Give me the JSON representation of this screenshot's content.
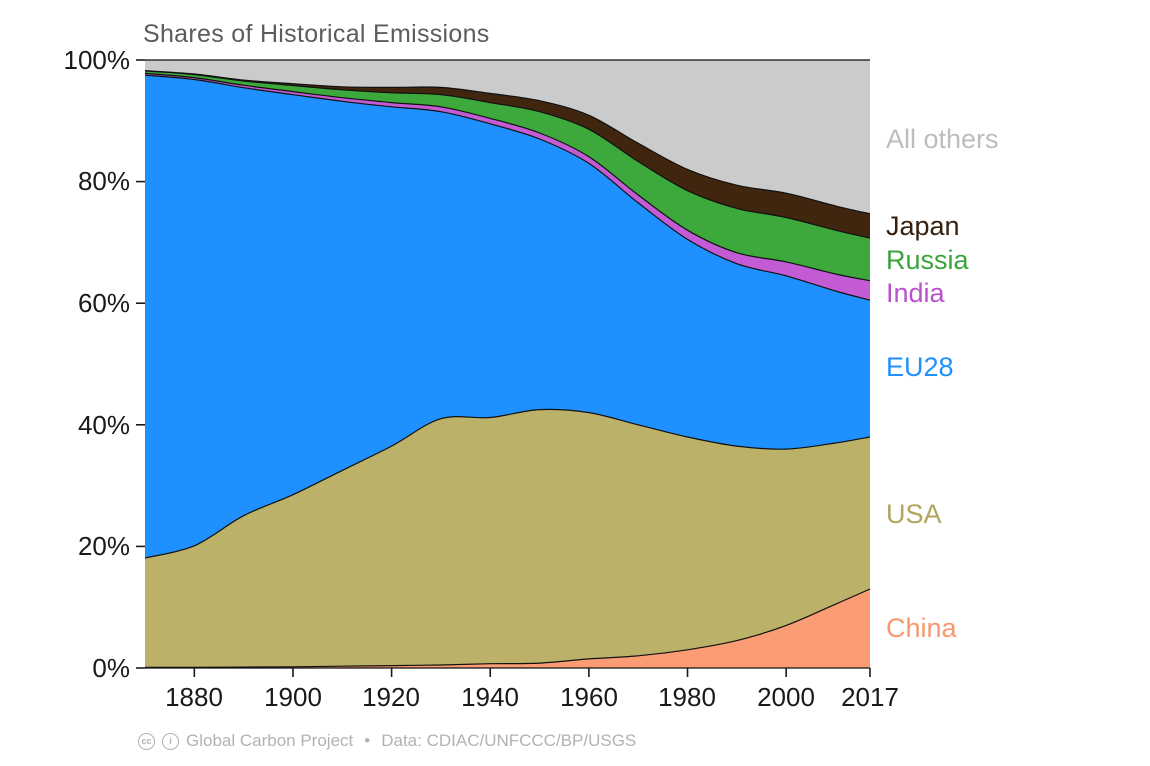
{
  "chart_data": {
    "type": "area",
    "stacked": true,
    "title": "Shares of Historical Emissions",
    "xlabel": "",
    "ylabel": "",
    "unit": "percent share of cumulative emissions",
    "xlim": [
      1870,
      2017
    ],
    "ylim": [
      0,
      100
    ],
    "grid": false,
    "legend_position": "right",
    "x": [
      1870,
      1880,
      1890,
      1900,
      1910,
      1920,
      1930,
      1940,
      1950,
      1960,
      1970,
      1980,
      1990,
      2000,
      2010,
      2017
    ],
    "x_tick_values": [
      1880,
      1900,
      1920,
      1940,
      1960,
      1980,
      2000,
      2017
    ],
    "x_tick_labels": [
      "1880",
      "1900",
      "1920",
      "1940",
      "1960",
      "1980",
      "2000",
      "2017"
    ],
    "y_tick_values": [
      100,
      80,
      60,
      40,
      20,
      0
    ],
    "y_tick_labels": [
      "100%",
      "80%",
      "60%",
      "40%",
      "20%",
      "0%"
    ],
    "series": [
      {
        "name": "China",
        "color": "#FA9C74",
        "values": [
          0.1,
          0.1,
          0.15,
          0.2,
          0.3,
          0.4,
          0.5,
          0.7,
          0.8,
          1.5,
          2.0,
          3.0,
          4.5,
          7.0,
          10.5,
          13.0
        ]
      },
      {
        "name": "USA",
        "color": "#BBB168",
        "values": [
          18.0,
          20.0,
          24.9,
          28.3,
          32.2,
          36.1,
          40.5,
          40.5,
          41.7,
          40.5,
          38.0,
          35.0,
          32.0,
          29.0,
          26.5,
          25.0
        ]
      },
      {
        "name": "EU28",
        "color": "#1E90FF",
        "values": [
          79.4,
          76.7,
          70.4,
          65.8,
          60.7,
          55.8,
          50.5,
          48.3,
          44.5,
          41.0,
          36.5,
          32.5,
          30.0,
          28.5,
          25.0,
          22.5
        ]
      },
      {
        "name": "India",
        "color": "#C35CD4",
        "values": [
          0.3,
          0.3,
          0.4,
          0.5,
          0.6,
          0.7,
          0.8,
          0.9,
          1.0,
          1.1,
          1.3,
          1.5,
          1.8,
          2.3,
          2.8,
          3.2
        ]
      },
      {
        "name": "Russia",
        "color": "#3DA83C",
        "values": [
          0.4,
          0.5,
          0.7,
          1.0,
          1.3,
          1.6,
          2.0,
          2.6,
          3.5,
          4.5,
          5.5,
          6.5,
          7.3,
          7.3,
          7.2,
          7.0
        ]
      },
      {
        "name": "Japan",
        "color": "#40250F",
        "values": [
          0.05,
          0.1,
          0.15,
          0.3,
          0.5,
          0.9,
          1.2,
          1.5,
          1.8,
          2.3,
          3.0,
          3.5,
          3.8,
          4.0,
          4.0,
          4.0
        ]
      },
      {
        "name": "All others",
        "color": "#CBCBCB",
        "values": [
          1.75,
          2.3,
          3.3,
          3.9,
          4.4,
          4.5,
          4.5,
          5.5,
          6.7,
          9.1,
          13.7,
          18.0,
          20.6,
          21.9,
          24.0,
          25.3
        ]
      }
    ]
  },
  "legend": {
    "items": [
      {
        "label": "All others",
        "color": "#BDBDBD"
      },
      {
        "label": "Japan",
        "color": "#38200C"
      },
      {
        "label": "Russia",
        "color": "#3AA43A"
      },
      {
        "label": "India",
        "color": "#BB50CE"
      },
      {
        "label": "EU28",
        "color": "#1E90FF"
      },
      {
        "label": "USA",
        "color": "#B0A65C"
      },
      {
        "label": "China",
        "color": "#F9976F"
      }
    ]
  },
  "footer": {
    "icons": [
      {
        "name": "cc-icon",
        "glyph": "cc"
      },
      {
        "name": "by-icon",
        "glyph": "i"
      }
    ],
    "attribution": "Global Carbon Project",
    "separator": "•",
    "source": "Data: CDIAC/UNFCCC/BP/USGS"
  }
}
